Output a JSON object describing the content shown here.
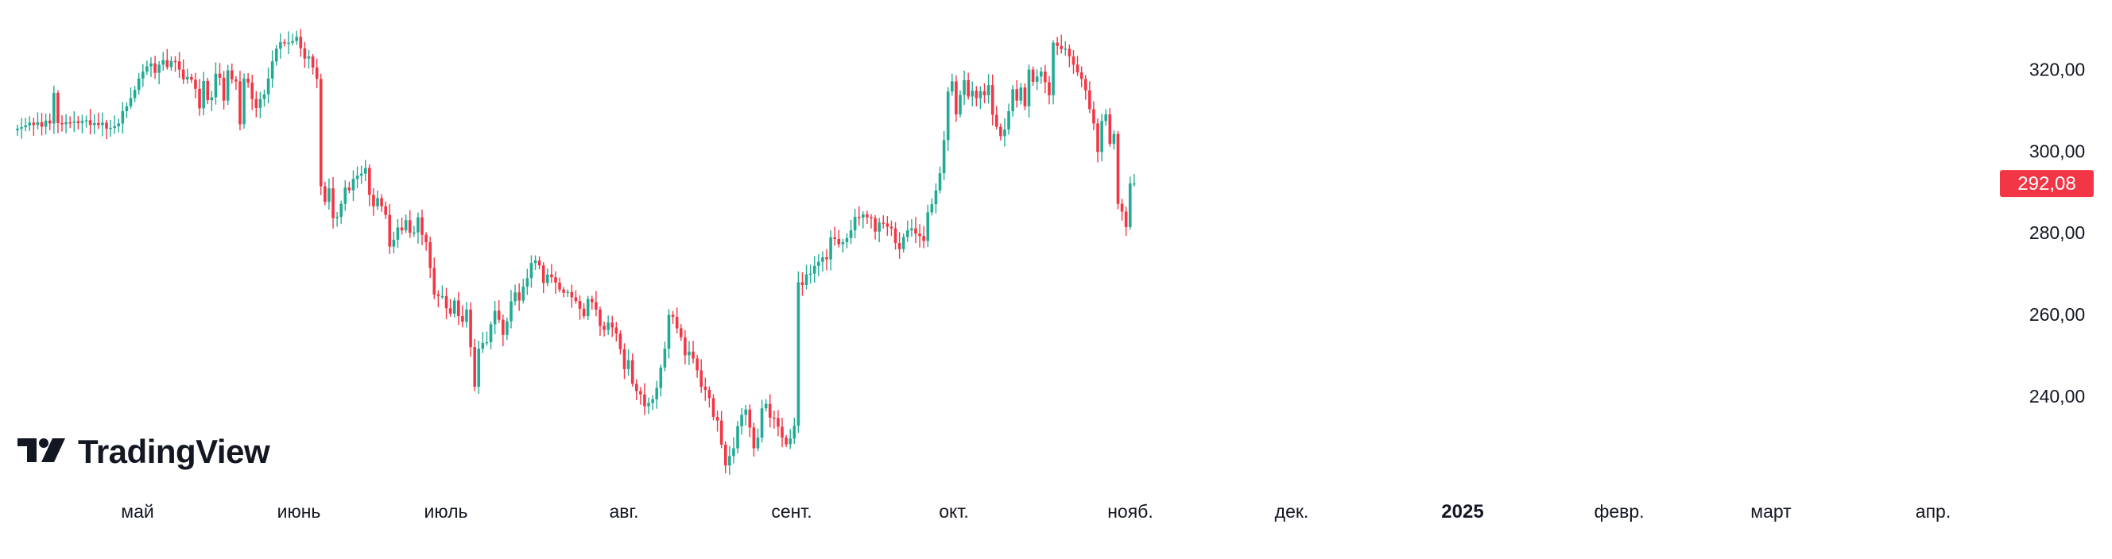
{
  "branding": {
    "logo_text": "TradingView",
    "logo_icon": "tradingview-logo-icon"
  },
  "colors": {
    "up": "#22ab94",
    "down": "#f23645",
    "text": "#131722",
    "background": "#ffffff"
  },
  "chart_data": {
    "type": "candlestick",
    "title": "",
    "y_axis": {
      "position": "right",
      "ticks": [
        "240,00",
        "260,00",
        "280,00",
        "300,00",
        "320,00"
      ],
      "ylim": [
        218,
        332
      ]
    },
    "x_axis": {
      "labels": [
        "май",
        "июнь",
        "июль",
        "авг.",
        "сент.",
        "окт.",
        "нояб.",
        "дек.",
        "2025",
        "февр.",
        "март",
        "апр."
      ]
    },
    "last_price": {
      "label": "292,08",
      "value": 292.08,
      "direction": "down"
    },
    "grid": false,
    "closes": [
      305.5,
      305.9,
      306.3,
      307.0,
      306.4,
      307.1,
      306.0,
      307.5,
      306.8,
      314.3,
      306.9,
      306.6,
      307.1,
      307.0,
      307.3,
      306.9,
      307.4,
      307.6,
      306.4,
      306.9,
      306.4,
      307.0,
      305.5,
      305.7,
      306.1,
      306.8,
      309.8,
      311.0,
      313.0,
      315.0,
      317.8,
      319.5,
      320.8,
      321.5,
      319.2,
      321.2,
      322.3,
      320.6,
      322.1,
      322.0,
      320.0,
      317.6,
      318.2,
      317.5,
      315.3,
      310.5,
      317.2,
      312.5,
      313.2,
      319.0,
      318.0,
      312.4,
      319.8,
      317.6,
      317.1,
      306.6,
      317.8,
      316.8,
      312.8,
      310.6,
      312.8,
      313.9,
      317.8,
      322.0,
      325.1,
      326.7,
      326.6,
      326.6,
      327.0,
      328.0,
      325.2,
      322.7,
      323.2,
      320.5,
      317.7,
      291.4,
      287.6,
      290.9,
      283.6,
      283.9,
      287.1,
      291.1,
      290.4,
      293.2,
      294.0,
      294.5,
      295.9,
      289.3,
      286.5,
      288.5,
      286.5,
      284.4,
      276.6,
      278.3,
      281.3,
      280.6,
      283.1,
      280.0,
      280.1,
      283.8,
      279.5,
      277.7,
      271.4,
      264.9,
      264.5,
      264.5,
      261.5,
      260.2,
      263.4,
      259.6,
      258.2,
      261.2,
      252.0,
      242.3,
      251.6,
      253.0,
      253.2,
      257.6,
      260.9,
      258.7,
      255.0,
      258.3,
      263.2,
      265.4,
      263.4,
      266.8,
      268.9,
      272.6,
      273.2,
      272.0,
      267.7,
      269.8,
      269.1,
      267.8,
      266.1,
      265.3,
      265.5,
      264.2,
      263.3,
      261.4,
      259.6,
      263.8,
      263.0,
      261.2,
      257.2,
      256.2,
      258.0,
      256.8,
      255.3,
      251.5,
      246.6,
      248.8,
      243.0,
      241.2,
      240.4,
      237.5,
      238.3,
      239.2,
      242.0,
      247.0,
      251.6,
      259.9,
      259.4,
      256.6,
      254.4,
      250.0,
      250.9,
      249.2,
      246.3,
      242.3,
      241.5,
      239.5,
      234.9,
      234.0,
      228.1,
      223.0,
      225.3,
      227.2,
      232.6,
      235.4,
      236.7,
      232.3,
      227.2,
      229.8,
      237.0,
      238.1,
      234.7,
      234.6,
      232.5,
      229.8,
      228.2,
      229.6,
      232.7,
      267.9,
      267.2,
      269.8,
      270.0,
      271.9,
      272.9,
      274.0,
      273.5,
      278.9,
      278.5,
      277.2,
      277.7,
      278.7,
      280.6,
      283.9,
      283.7,
      284.5,
      283.8,
      283.6,
      280.3,
      282.5,
      282.3,
      281.5,
      281.1,
      277.5,
      276.0,
      279.0,
      280.6,
      281.1,
      279.8,
      279.2,
      278.0,
      285.0,
      287.0,
      290.4,
      294.6,
      302.7,
      314.6,
      317.1,
      309.0,
      313.8,
      317.4,
      313.4,
      314.8,
      313.0,
      314.7,
      313.7,
      316.2,
      308.9,
      306.0,
      303.7,
      305.3,
      309.8,
      315.2,
      312.4,
      315.6,
      311.0,
      320.0,
      317.0,
      318.3,
      319.5,
      316.9,
      313.7,
      326.6,
      325.8,
      325.0,
      325.1,
      323.2,
      321.2,
      319.3,
      317.7,
      314.9,
      310.3,
      306.8,
      299.8,
      307.4,
      309.0,
      301.8,
      304.2,
      287.1,
      285.2,
      281.4,
      292.1,
      292.1
    ]
  }
}
